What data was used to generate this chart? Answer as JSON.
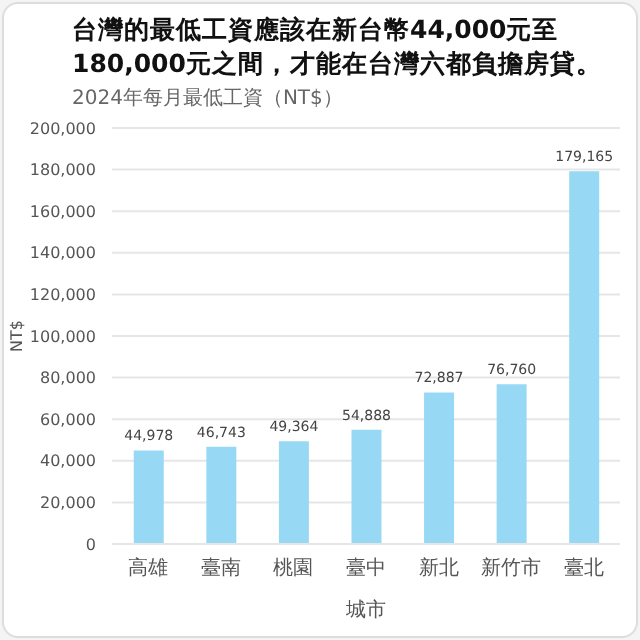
{
  "chart_data": {
    "type": "bar",
    "title": "台灣的最低工資應該在新台幣44,000元至180,000元之間，才能在台灣六都負擔房貸。",
    "subtitle": "2024年每月最低工資（NT$）",
    "xlabel": "城市",
    "ylabel": "NT$",
    "categories": [
      "高雄",
      "臺南",
      "桃園",
      "臺中",
      "新北",
      "新竹市",
      "臺北"
    ],
    "values": [
      44978,
      46743,
      49364,
      54888,
      72887,
      76760,
      179165
    ],
    "value_labels": [
      "44,978",
      "46,743",
      "49,364",
      "54,888",
      "72,887",
      "76,760",
      "179,165"
    ],
    "color": "#97d9f5",
    "ylim": [
      0,
      200000
    ],
    "yticks": [
      0,
      {
        "value": 20000,
        "label": "20,000"
      },
      {
        "value": 40000,
        "label": "40,000"
      },
      {
        "value": 60000,
        "label": "60,000"
      },
      {
        "value": 80000,
        "label": "80,000"
      },
      {
        "value": 100000,
        "label": "100,000"
      },
      {
        "value": 120000,
        "label": "120,000"
      },
      {
        "value": 140000,
        "label": "140,000"
      },
      {
        "value": 160000,
        "label": "160,000"
      },
      {
        "value": 180000,
        "label": "180,000"
      },
      {
        "value": 200000,
        "label": "200,000"
      }
    ],
    "grid": "y"
  }
}
